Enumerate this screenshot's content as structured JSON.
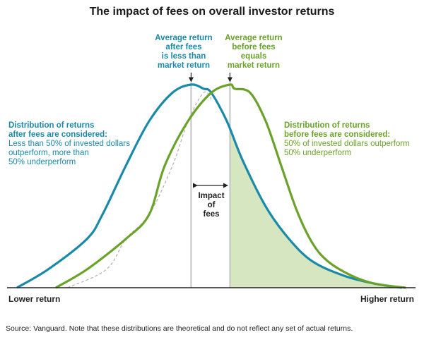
{
  "title": "The impact of fees on overall investor returns",
  "colors": {
    "after_fees": "#1a8aa8",
    "before_fees": "#6aa22a",
    "shaded": "#d5e6c0",
    "dashed": "#b5b5b5",
    "marker_line": "#c4c4c4",
    "axis": "#222222"
  },
  "annotations": {
    "after_avg": "Average return\nafter fees\nis less than\nmarket return",
    "before_avg": "Average return\nbefore fees\nequals\nmarket return",
    "after_dist_title": "Distribution of returns\nafter fees are considered:",
    "after_dist_body": "Less than 50% of invested dollars\noutperform, more than\n50% underperform",
    "before_dist_title": "Distribution of returns\nbefore fees are considered:",
    "before_dist_body": "50% of invested dollars outperform\n50% underperform",
    "impact": "Impact\nof\nfees"
  },
  "axis": {
    "left_label": "Lower return",
    "right_label": "Higher return"
  },
  "source": "Source: Vanguard.  Note that these distributions are theoretical and do not reflect any set of actual returns.",
  "chart_data": {
    "type": "area",
    "x_axis": {
      "left_label": "Lower return",
      "right_label": "Higher return",
      "range": [
        0,
        100
      ]
    },
    "y_range": [
      0,
      1
    ],
    "grid": false,
    "series": [
      {
        "key": "after_fees",
        "style": "solid-line",
        "peak_x": 44.8,
        "peak_y": 1.0,
        "x": [
          0,
          8,
          18,
          22,
          28,
          34,
          40,
          44.8,
          48,
          50,
          54,
          58,
          64,
          70,
          76,
          84,
          92,
          99
        ],
        "y": [
          0,
          0.09,
          0.24,
          0.36,
          0.6,
          0.82,
          0.96,
          1.0,
          0.98,
          0.96,
          0.82,
          0.63,
          0.4,
          0.24,
          0.13,
          0.06,
          0.02,
          0
        ]
      },
      {
        "key": "before_fees",
        "style": "solid-line",
        "peak_x": 54.8,
        "peak_y": 1.0,
        "x": [
          10,
          18,
          28,
          34,
          38,
          44,
          50,
          54.8,
          56,
          60,
          64,
          68,
          72,
          76,
          80,
          86,
          92,
          100
        ],
        "y": [
          0,
          0.09,
          0.24,
          0.36,
          0.6,
          0.82,
          0.96,
          1.0,
          0.98,
          0.96,
          0.82,
          0.6,
          0.38,
          0.22,
          0.13,
          0.06,
          0.02,
          0
        ]
      },
      {
        "key": "before_fees_dashed",
        "style": "dashed",
        "x": [
          13,
          23,
          28,
          34,
          40,
          44,
          48,
          50
        ],
        "y": [
          0,
          0.09,
          0.24,
          0.36,
          0.6,
          0.82,
          0.96,
          0.93
        ]
      }
    ],
    "markers": {
      "after_avg_x": 44.8,
      "before_avg_x": 54.8
    },
    "shaded_region": {
      "series": "after_fees",
      "from_x": 54.8,
      "to_x": 99
    }
  }
}
